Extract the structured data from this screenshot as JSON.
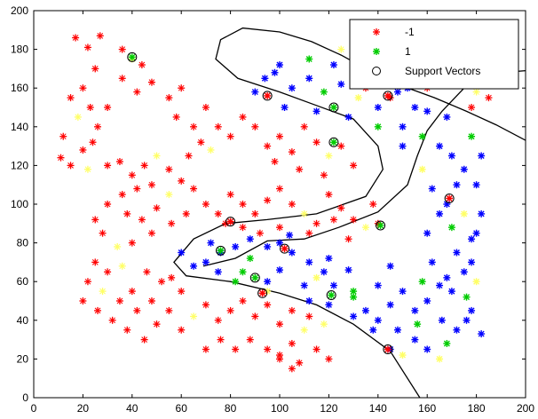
{
  "chart_data": {
    "type": "scatter",
    "title": "",
    "xlabel": "",
    "ylabel": "",
    "xlim": [
      0,
      200
    ],
    "ylim": [
      0,
      200
    ],
    "x_ticks": [
      0,
      20,
      40,
      60,
      80,
      100,
      120,
      140,
      160,
      180,
      200
    ],
    "y_ticks": [
      0,
      20,
      40,
      60,
      80,
      100,
      120,
      140,
      160,
      180,
      200
    ],
    "grid": false,
    "legend_position": "top-right",
    "legend": [
      {
        "label": "-1",
        "marker": "plus",
        "color": "#ff0000"
      },
      {
        "label": "1",
        "marker": "star",
        "color": "#00cc00"
      },
      {
        "label": "Support Vectors",
        "marker": "circle",
        "color": "#000000"
      }
    ],
    "colors": {
      "class_neg": "#ff0000",
      "class_pos": "#00cc00",
      "class_pos_dense": "#0000ff",
      "highlight": "#ffff66",
      "boundary": "#000000"
    },
    "series": [
      {
        "name": "-1",
        "points": [
          [
            17,
            186
          ],
          [
            22,
            181
          ],
          [
            27,
            187
          ],
          [
            36,
            180
          ],
          [
            40,
            175
          ],
          [
            44,
            172
          ],
          [
            48,
            163
          ],
          [
            42,
            158
          ],
          [
            36,
            165
          ],
          [
            25,
            170
          ],
          [
            20,
            160
          ],
          [
            15,
            155
          ],
          [
            23,
            150
          ],
          [
            18,
            145
          ],
          [
            26,
            140
          ],
          [
            30,
            150
          ],
          [
            12,
            135
          ],
          [
            20,
            128
          ],
          [
            15,
            120
          ],
          [
            11,
            124
          ],
          [
            24,
            132
          ],
          [
            30,
            120
          ],
          [
            22,
            118
          ],
          [
            55,
            155
          ],
          [
            60,
            160
          ],
          [
            58,
            145
          ],
          [
            65,
            140
          ],
          [
            70,
            150
          ],
          [
            68,
            132
          ],
          [
            75,
            140
          ],
          [
            80,
            135
          ],
          [
            72,
            128
          ],
          [
            63,
            125
          ],
          [
            85,
            145
          ],
          [
            90,
            140
          ],
          [
            95,
            130
          ],
          [
            100,
            135
          ],
          [
            105,
            127
          ],
          [
            110,
            140
          ],
          [
            115,
            132
          ],
          [
            120,
            125
          ],
          [
            125,
            130
          ],
          [
            130,
            120
          ],
          [
            118,
            115
          ],
          [
            108,
            118
          ],
          [
            98,
            122
          ],
          [
            35,
            122
          ],
          [
            40,
            115
          ],
          [
            45,
            120
          ],
          [
            50,
            125
          ],
          [
            55,
            118
          ],
          [
            48,
            110
          ],
          [
            42,
            108
          ],
          [
            36,
            105
          ],
          [
            30,
            100
          ],
          [
            38,
            95
          ],
          [
            44,
            92
          ],
          [
            50,
            98
          ],
          [
            55,
            105
          ],
          [
            60,
            112
          ],
          [
            65,
            108
          ],
          [
            70,
            100
          ],
          [
            75,
            95
          ],
          [
            62,
            95
          ],
          [
            56,
            90
          ],
          [
            48,
            85
          ],
          [
            40,
            80
          ],
          [
            34,
            78
          ],
          [
            28,
            85
          ],
          [
            25,
            92
          ],
          [
            80,
            105
          ],
          [
            85,
            100
          ],
          [
            90,
            95
          ],
          [
            95,
            102
          ],
          [
            100,
            108
          ],
          [
            105,
            100
          ],
          [
            110,
            95
          ],
          [
            115,
            90
          ],
          [
            100,
            88
          ],
          [
            92,
            85
          ],
          [
            85,
            88
          ],
          [
            78,
            90
          ],
          [
            120,
            105
          ],
          [
            125,
            98
          ],
          [
            130,
            92
          ],
          [
            135,
            88
          ],
          [
            128,
            82
          ],
          [
            140,
            90
          ],
          [
            138,
            100
          ],
          [
            122,
            92
          ],
          [
            112,
            85
          ],
          [
            25,
            70
          ],
          [
            30,
            65
          ],
          [
            22,
            60
          ],
          [
            28,
            55
          ],
          [
            20,
            50
          ],
          [
            26,
            45
          ],
          [
            32,
            40
          ],
          [
            38,
            35
          ],
          [
            45,
            30
          ],
          [
            50,
            38
          ],
          [
            55,
            45
          ],
          [
            60,
            35
          ],
          [
            65,
            42
          ],
          [
            70,
            48
          ],
          [
            75,
            40
          ],
          [
            80,
            45
          ],
          [
            85,
            50
          ],
          [
            90,
            42
          ],
          [
            95,
            48
          ],
          [
            100,
            38
          ],
          [
            105,
            45
          ],
          [
            110,
            35
          ],
          [
            105,
            28
          ],
          [
            100,
            22
          ],
          [
            95,
            25
          ],
          [
            88,
            30
          ],
          [
            82,
            25
          ],
          [
            76,
            30
          ],
          [
            70,
            25
          ],
          [
            112,
            42
          ],
          [
            118,
            38
          ],
          [
            60,
            55
          ],
          [
            52,
            60
          ],
          [
            46,
            65
          ],
          [
            40,
            55
          ],
          [
            35,
            50
          ],
          [
            42,
            45
          ],
          [
            48,
            50
          ],
          [
            56,
            62
          ],
          [
            36,
            68
          ],
          [
            100,
            20
          ],
          [
            108,
            18
          ],
          [
            115,
            25
          ],
          [
            105,
            15
          ],
          [
            120,
            20
          ],
          [
            150,
            165
          ],
          [
            160,
            160
          ],
          [
            170,
            165
          ],
          [
            180,
            158
          ],
          [
            185,
            155
          ],
          [
            175,
            170
          ],
          [
            165,
            172
          ],
          [
            155,
            175
          ],
          [
            145,
            180
          ],
          [
            140,
            175
          ],
          [
            135,
            170
          ],
          [
            130,
            185
          ],
          [
            125,
            180
          ],
          [
            135,
            160
          ],
          [
            145,
            155
          ],
          [
            178,
            150
          ]
        ]
      },
      {
        "name": "1",
        "points": [
          [
            98,
            168
          ],
          [
            105,
            160
          ],
          [
            112,
            165
          ],
          [
            118,
            158
          ],
          [
            125,
            162
          ],
          [
            132,
            155
          ],
          [
            140,
            150
          ],
          [
            148,
            158
          ],
          [
            155,
            150
          ],
          [
            150,
            140
          ],
          [
            158,
            135
          ],
          [
            165,
            130
          ],
          [
            170,
            125
          ],
          [
            175,
            118
          ],
          [
            172,
            110
          ],
          [
            168,
            100
          ],
          [
            175,
            95
          ],
          [
            170,
            88
          ],
          [
            178,
            82
          ],
          [
            172,
            75
          ],
          [
            175,
            65
          ],
          [
            170,
            55
          ],
          [
            178,
            45
          ],
          [
            172,
            35
          ],
          [
            168,
            28
          ],
          [
            160,
            25
          ],
          [
            155,
            30
          ],
          [
            150,
            22
          ],
          [
            148,
            35
          ],
          [
            140,
            40
          ],
          [
            135,
            45
          ],
          [
            130,
            52
          ],
          [
            122,
            58
          ],
          [
            118,
            65
          ],
          [
            112,
            70
          ],
          [
            105,
            75
          ],
          [
            100,
            80
          ],
          [
            95,
            78
          ],
          [
            88,
            72
          ],
          [
            82,
            78
          ],
          [
            76,
            75
          ],
          [
            70,
            70
          ],
          [
            65,
            68
          ],
          [
            60,
            75
          ],
          [
            72,
            80
          ],
          [
            85,
            65
          ],
          [
            95,
            60
          ],
          [
            100,
            66
          ],
          [
            110,
            58
          ],
          [
            115,
            62
          ],
          [
            120,
            72
          ],
          [
            128,
            66
          ],
          [
            130,
            55
          ],
          [
            140,
            58
          ],
          [
            145,
            48
          ],
          [
            155,
            45
          ],
          [
            160,
            50
          ],
          [
            165,
            58
          ],
          [
            168,
            62
          ],
          [
            176,
            52
          ],
          [
            180,
            60
          ],
          [
            178,
            70
          ],
          [
            180,
            85
          ],
          [
            182,
            95
          ],
          [
            180,
            110
          ],
          [
            182,
            125
          ],
          [
            178,
            135
          ],
          [
            168,
            145
          ],
          [
            160,
            148
          ],
          [
            152,
            160
          ],
          [
            142,
            165
          ],
          [
            132,
            170
          ],
          [
            122,
            172
          ],
          [
            112,
            175
          ],
          [
            100,
            172
          ],
          [
            94,
            165
          ],
          [
            90,
            158
          ],
          [
            102,
            150
          ],
          [
            115,
            148
          ],
          [
            128,
            145
          ],
          [
            140,
            140
          ],
          [
            150,
            130
          ],
          [
            158,
            118
          ],
          [
            162,
            108
          ],
          [
            165,
            95
          ],
          [
            160,
            85
          ],
          [
            162,
            70
          ],
          [
            158,
            60
          ],
          [
            150,
            55
          ],
          [
            145,
            68
          ],
          [
            130,
            42
          ],
          [
            120,
            48
          ],
          [
            112,
            50
          ],
          [
            95,
            55
          ],
          [
            82,
            60
          ],
          [
            75,
            65
          ],
          [
            88,
            82
          ],
          [
            104,
            84
          ],
          [
            182,
            33
          ],
          [
            176,
            40
          ],
          [
            166,
            40
          ],
          [
            156,
            38
          ],
          [
            138,
            35
          ],
          [
            145,
            25
          ],
          [
            165,
            20
          ]
        ]
      },
      {
        "name": "Support Vectors",
        "points": [
          [
            40,
            176
          ],
          [
            95,
            156
          ],
          [
            122,
            150
          ],
          [
            144,
            156
          ],
          [
            122,
            132
          ],
          [
            80,
            91
          ],
          [
            141,
            89
          ],
          [
            169,
            103
          ],
          [
            76,
            76
          ],
          [
            102,
            77
          ],
          [
            90,
            62
          ],
          [
            93,
            54
          ],
          [
            121,
            53
          ],
          [
            144,
            25
          ]
        ]
      }
    ]
  }
}
